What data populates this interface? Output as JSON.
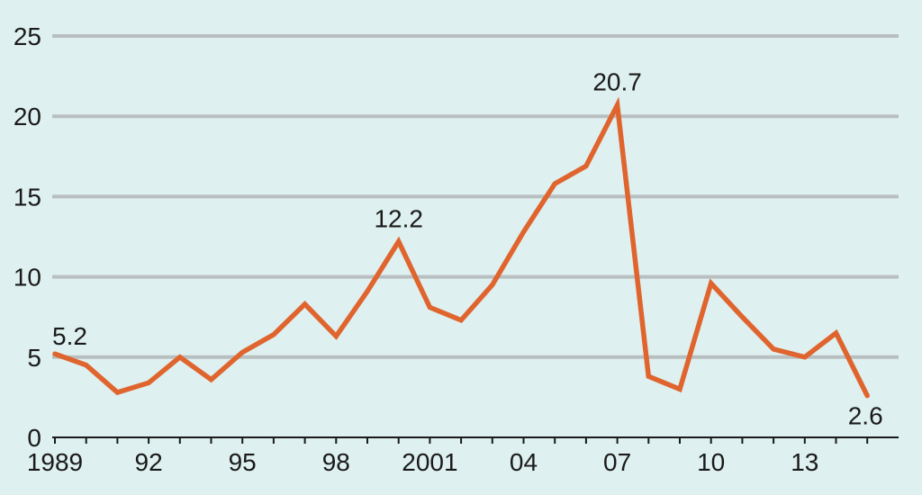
{
  "chart_data": {
    "type": "line",
    "title": "",
    "xlabel": "",
    "ylabel": "",
    "ylim": [
      0,
      25
    ],
    "yticks": [
      0,
      5,
      10,
      15,
      20,
      25
    ],
    "grid": true,
    "x": [
      1989,
      1990,
      1991,
      1992,
      1993,
      1994,
      1995,
      1996,
      1997,
      1998,
      1999,
      2000,
      2001,
      2002,
      2003,
      2004,
      2005,
      2006,
      2007,
      2008,
      2009,
      2010,
      2011,
      2012,
      2013,
      2014,
      2015
    ],
    "xtick_values": [
      1989,
      1992,
      1995,
      1998,
      2001,
      2004,
      2007,
      2010,
      2013
    ],
    "xtick_labels": [
      "1989",
      "92",
      "95",
      "98",
      "2001",
      "04",
      "07",
      "10",
      "13"
    ],
    "series": [
      {
        "values": [
          5.2,
          4.5,
          2.8,
          3.4,
          5.0,
          3.6,
          5.3,
          6.4,
          8.3,
          6.3,
          9.1,
          12.2,
          8.1,
          7.3,
          9.5,
          12.8,
          15.8,
          16.9,
          20.7,
          3.8,
          3.0,
          9.6,
          7.5,
          5.5,
          5.0,
          6.5,
          2.6
        ],
        "color": "#e0642e"
      }
    ],
    "annotations": [
      {
        "x": 1989,
        "y": 5.2,
        "text": "5.2"
      },
      {
        "x": 2000,
        "y": 12.2,
        "text": "12.2"
      },
      {
        "x": 2007,
        "y": 20.7,
        "text": "20.7"
      },
      {
        "x": 2015,
        "y": 2.6,
        "text": "2.6"
      }
    ],
    "colors": {
      "background": "#def0ef",
      "grid": "#b9bfc0",
      "axis": "#1a1a1a",
      "line": "#e0642e"
    }
  }
}
